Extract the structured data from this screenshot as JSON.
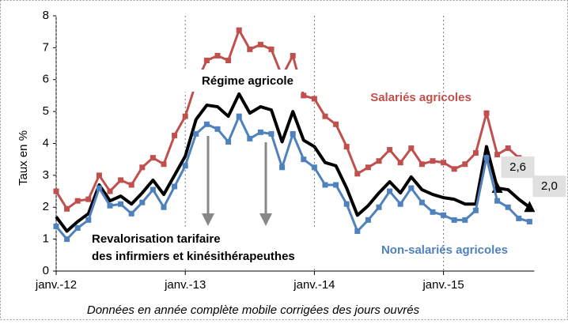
{
  "chart_data": {
    "type": "line",
    "y_label": "Taux en %",
    "footnote": "Données en année complète mobile corrigées des jours ouvrés",
    "annotation": [
      "Revalorisation tarifaire",
      "des infirmiers et kinésithérapeuthes"
    ],
    "categories": [
      "janv.-12",
      null,
      null,
      null,
      null,
      null,
      null,
      null,
      null,
      null,
      null,
      null,
      "janv.-13",
      null,
      null,
      null,
      null,
      null,
      null,
      null,
      null,
      null,
      null,
      null,
      "janv.-14",
      null,
      null,
      null,
      null,
      null,
      null,
      null,
      null,
      null,
      null,
      null,
      "janv.-15",
      null,
      null,
      null,
      null,
      null,
      null,
      null,
      null
    ],
    "series": [
      {
        "name": "Salariés agricoles",
        "color": "#c0504d",
        "marker": "square",
        "values": [
          2.5,
          1.95,
          2.2,
          2.25,
          3.0,
          2.5,
          2.85,
          2.7,
          3.25,
          3.55,
          3.35,
          4.25,
          4.85,
          5.9,
          6.6,
          6.75,
          6.6,
          7.55,
          6.95,
          7.1,
          6.95,
          6.1,
          6.75,
          5.5,
          5.4,
          4.85,
          4.6,
          3.9,
          3.05,
          3.25,
          3.45,
          3.8,
          3.4,
          3.85,
          3.35,
          3.45,
          3.4,
          3.2,
          3.35,
          3.7,
          4.95,
          3.65,
          3.85,
          3.55,
          null
        ]
      },
      {
        "name": "Régime agricole",
        "color": "#000000",
        "marker": "none",
        "values": [
          1.7,
          1.25,
          1.55,
          1.8,
          2.7,
          2.2,
          2.35,
          2.1,
          2.45,
          2.85,
          2.4,
          3.0,
          3.6,
          4.75,
          5.2,
          5.15,
          4.85,
          5.55,
          4.95,
          5.15,
          5.05,
          4.05,
          5.0,
          4.1,
          3.9,
          3.4,
          3.3,
          2.6,
          1.75,
          2.05,
          2.45,
          2.8,
          2.45,
          2.95,
          2.55,
          2.4,
          2.3,
          2.25,
          2.1,
          2.1,
          3.9,
          2.6,
          2.55,
          2.25,
          2.0
        ],
        "value_labels": [
          null,
          null,
          null,
          null,
          null,
          null,
          null,
          null,
          null,
          null,
          null,
          null,
          null,
          null,
          null,
          null,
          null,
          null,
          null,
          null,
          null,
          null,
          null,
          null,
          null,
          null,
          null,
          null,
          null,
          null,
          null,
          null,
          null,
          null,
          null,
          null,
          null,
          null,
          null,
          null,
          null,
          "2,6",
          null,
          null,
          "2,0"
        ]
      },
      {
        "name": "Non-salariés agricoles",
        "color": "#4f81bd",
        "marker": "square",
        "values": [
          1.4,
          1.0,
          1.35,
          1.6,
          2.6,
          2.05,
          2.1,
          1.8,
          2.15,
          2.55,
          2.0,
          2.65,
          3.3,
          4.3,
          4.6,
          4.45,
          4.05,
          4.85,
          4.15,
          4.35,
          4.3,
          3.25,
          4.3,
          3.5,
          3.25,
          2.7,
          2.7,
          2.1,
          1.25,
          1.6,
          2.0,
          2.5,
          2.1,
          2.6,
          2.15,
          1.85,
          1.75,
          1.6,
          1.6,
          1.9,
          3.55,
          2.2,
          2.0,
          1.65,
          1.55
        ]
      }
    ],
    "ylim": [
      0,
      8
    ],
    "yticks": [
      0,
      1,
      2,
      3,
      4,
      5,
      6,
      7,
      8
    ],
    "grid": false
  }
}
